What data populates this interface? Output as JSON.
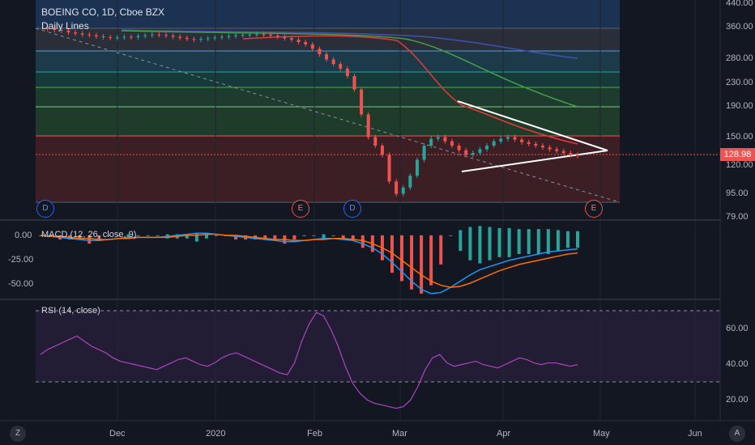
{
  "header": {
    "title": "BOEING CO, 1D, Cboe BZX",
    "study_label": "Daily Lines"
  },
  "last_price": "128.98",
  "yaxis_main": [
    "440.00",
    "360.00",
    "280.00",
    "230.00",
    "190.00",
    "150.00",
    "120.00",
    "95.00",
    "79.00"
  ],
  "yaxis_macd": [
    "0.00",
    "-25.00",
    "-50.00"
  ],
  "yaxis_rsi": [
    "60.00",
    "40.00",
    "20.00"
  ],
  "xaxis": [
    "Dec",
    "2020",
    "Feb",
    "Mar",
    "Apr",
    "May",
    "Jun"
  ],
  "macd_label": "MACD (12, 26, close, 9)",
  "rsi_label": "RSI (14, close)",
  "events": [
    "D",
    "E",
    "D",
    "E"
  ],
  "corners": {
    "left": "Z",
    "right": "A"
  },
  "chart_data": {
    "type": "line",
    "price_series": [
      360,
      358,
      355,
      353,
      348,
      345,
      342,
      340,
      337,
      335,
      333,
      334,
      336,
      335,
      338,
      340,
      342,
      341,
      339,
      336,
      333,
      330,
      328,
      330,
      332,
      334,
      336,
      338,
      340,
      341,
      342,
      343,
      342,
      339,
      336,
      332,
      328,
      322,
      316,
      305,
      292,
      280,
      270,
      260,
      245,
      220,
      180,
      150,
      140,
      130,
      105,
      95,
      100,
      110,
      125,
      140,
      148,
      150,
      145,
      140,
      135,
      130,
      132,
      136,
      140,
      145,
      148,
      150,
      147,
      144,
      142,
      140,
      138,
      136,
      134,
      132,
      130,
      129
    ],
    "macd_series": [
      0,
      -1,
      -2,
      -3,
      -4,
      -5,
      -5,
      -4,
      -3,
      -2,
      -2,
      -2,
      -2,
      -1,
      0,
      1,
      2,
      2,
      1,
      0,
      -1,
      -2,
      -3,
      -4,
      -5,
      -6,
      -6,
      -5,
      -4,
      -3,
      -3,
      -4,
      -5,
      -8,
      -12,
      -18,
      -26,
      -35,
      -44,
      -52,
      -56,
      -55,
      -50,
      -44,
      -38,
      -33,
      -30,
      -27,
      -24,
      -22,
      -20,
      -18,
      -16,
      -15,
      -14,
      -13
    ],
    "macd_signal": [
      0,
      -1,
      -1,
      -2,
      -3,
      -3,
      -4,
      -4,
      -3,
      -3,
      -2,
      -2,
      -2,
      -2,
      -1,
      0,
      0,
      1,
      1,
      0,
      0,
      -1,
      -2,
      -3,
      -4,
      -4,
      -5,
      -5,
      -4,
      -4,
      -3,
      -3,
      -4,
      -5,
      -8,
      -12,
      -17,
      -24,
      -31,
      -38,
      -44,
      -48,
      -50,
      -49,
      -46,
      -42,
      -38,
      -34,
      -31,
      -28,
      -26,
      -24,
      -22,
      -20,
      -18,
      -17
    ],
    "rsi_series": [
      47,
      50,
      52,
      54,
      56,
      58,
      55,
      52,
      50,
      48,
      45,
      43,
      42,
      41,
      40,
      39,
      38,
      40,
      42,
      44,
      45,
      43,
      41,
      40,
      42,
      45,
      47,
      48,
      46,
      44,
      42,
      40,
      38,
      36,
      35,
      42,
      55,
      65,
      72,
      70,
      62,
      52,
      40,
      30,
      24,
      20,
      18,
      17,
      16,
      15,
      16,
      20,
      28,
      38,
      45,
      47,
      42,
      40,
      41,
      42,
      43,
      41,
      40,
      39,
      41,
      43,
      45,
      44,
      42,
      41,
      42,
      42,
      41,
      40,
      41
    ],
    "rsi_levels": [
      70,
      30
    ],
    "ylim_main": [
      79,
      440
    ],
    "ylim_macd": [
      -60,
      10
    ],
    "ylim_rsi": [
      10,
      75
    ]
  }
}
